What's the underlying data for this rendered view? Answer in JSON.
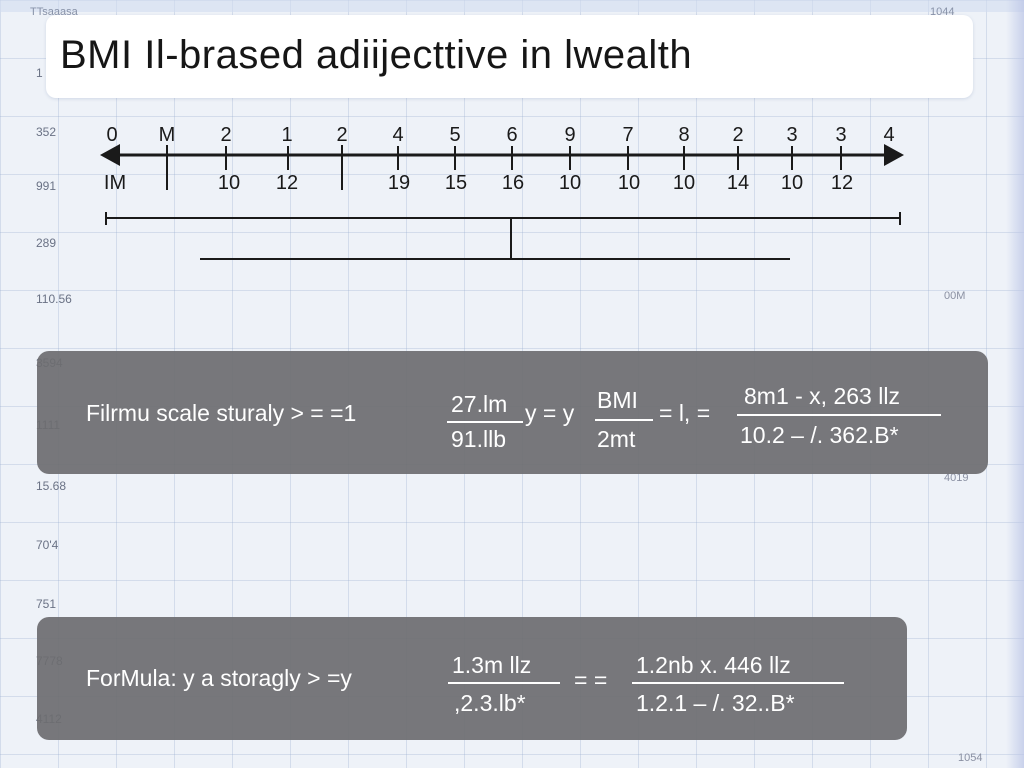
{
  "title": "BMI Il-brased adiijecttive in lwealth",
  "corner_labels": {
    "top_left": "TTsaaasa",
    "top_right": "1044"
  },
  "background_labels": {
    "left": [
      "1",
      "352",
      "991",
      "289",
      "110.56",
      "3594",
      "1111",
      "15.68",
      "70'4",
      "751",
      "7778",
      "4112"
    ],
    "right": [
      "00M",
      "4019",
      "1054"
    ]
  },
  "axis": {
    "top_labels": [
      "0",
      "M",
      "2",
      "1",
      "2",
      "4",
      "5",
      "6",
      "9",
      "7",
      "8",
      "2",
      "3",
      "3",
      "4"
    ],
    "bottom_labels": [
      "IM",
      "10",
      "12",
      "19",
      "15",
      "16",
      "10",
      "10",
      "10",
      "14",
      "10",
      "12"
    ]
  },
  "formula1": {
    "prefix": "Filrmu scale sturaly > = =1",
    "frac1_num": "27.lm",
    "frac1_den": "91.llb",
    "mid1": "y = y",
    "frac2_num": "BMI",
    "frac2_den": "2mt",
    "mid2": "= l, =",
    "frac3_num": "8m1 - x, 263 llz",
    "frac3_den": "10.2 – /. 362.B*"
  },
  "formula2": {
    "prefix": "ForMula: y a storagly > =y",
    "frac1_num": "1.3m llz",
    "frac1_den": ",2.3.lb*",
    "mid": "= =",
    "frac2_num": "1.2nb x. 446 llz",
    "frac2_den": "1.2.1 – /. 32..B*"
  },
  "colors": {
    "panel_bg": "#6c6c70",
    "axis_line": "#1a1a1a",
    "grid": "#96aacd"
  }
}
